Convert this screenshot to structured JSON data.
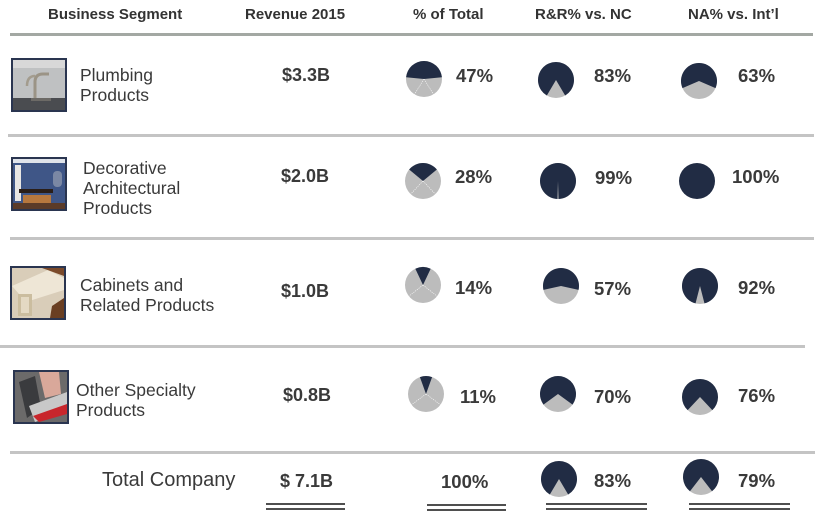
{
  "colors": {
    "navy": "#212c44",
    "gray": "#bcbcbc",
    "divider": "#ffffff"
  },
  "headers": {
    "segment": "Business Segment",
    "revenue": "Revenue 2015",
    "pct_total": "% of Total",
    "rr_nc": "R&R% vs. NC",
    "na_intl": "NA% vs. Int’l"
  },
  "chart_data": {
    "type": "table",
    "title": "",
    "columns": [
      "Business Segment",
      "Revenue 2015",
      "% of Total",
      "R&R% vs. NC",
      "NA% vs. Int’l"
    ],
    "rows": [
      {
        "segment": [
          "Plumbing",
          "Products"
        ],
        "segment_full": "Plumbing Products",
        "image": "faucet-photo",
        "revenue": "$3.3B",
        "revenue_b": 3.3,
        "pct_total": 47,
        "rr_nc": 83,
        "na_intl": 63
      },
      {
        "segment": [
          "Decorative",
          "Architectural",
          "Products"
        ],
        "segment_full": "Decorative Architectural Products",
        "image": "painted-room-photo",
        "revenue": "$2.0B",
        "revenue_b": 2.0,
        "pct_total": 28,
        "rr_nc": 99,
        "na_intl": 100
      },
      {
        "segment": [
          "Cabinets and",
          "Related Products"
        ],
        "segment_full": "Cabinets and Related Products",
        "image": "cabinet-molding-photo",
        "revenue": "$1.0B",
        "revenue_b": 1.0,
        "pct_total": 14,
        "rr_nc": 57,
        "na_intl": 92
      },
      {
        "segment": [
          "Other Specialty",
          "Products"
        ],
        "segment_full": "Other Specialty Products",
        "image": "staple-gun-photo",
        "revenue": "$0.8B",
        "revenue_b": 0.8,
        "pct_total": 11,
        "rr_nc": 70,
        "na_intl": 76
      }
    ],
    "total": {
      "segment": "Total Company",
      "revenue": "$ 7.1B",
      "revenue_b": 7.1,
      "pct_total": 100,
      "rr_nc": 83,
      "na_intl": 79
    },
    "pie_encoding": "navy slice = highlighted share; gray = remainder"
  },
  "labels": {
    "rows": [
      {
        "pct_total": "47%",
        "rr_nc": "83%",
        "na_intl": "63%"
      },
      {
        "pct_total": "28%",
        "rr_nc": "99%",
        "na_intl": "100%"
      },
      {
        "pct_total": "14%",
        "rr_nc": "57%",
        "na_intl": "92%"
      },
      {
        "pct_total": "11%",
        "rr_nc": "70%",
        "na_intl": "76%"
      }
    ],
    "total": {
      "pct_total": "100%",
      "rr_nc": "83%",
      "na_intl": "79%"
    }
  }
}
